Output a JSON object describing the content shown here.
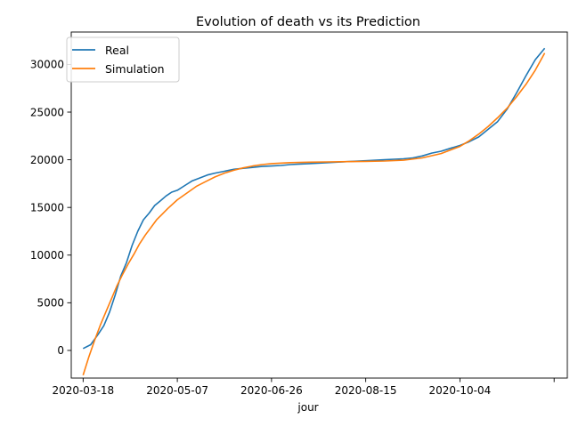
{
  "chart_data": {
    "type": "line",
    "title": "Evolution of death vs its Prediction",
    "xlabel": "jour",
    "ylabel": "",
    "x_tick_labels": [
      "2020-03-18",
      "2020-05-07",
      "2020-06-26",
      "2020-08-15",
      "2020-10-04",
      ""
    ],
    "x_tick_days": [
      0,
      50,
      100,
      150,
      200,
      250
    ],
    "x_range_days": [
      -6.3,
      257
    ],
    "x_start_date": "2020-03-18",
    "y_ticks": [
      0,
      5000,
      10000,
      15000,
      20000,
      25000,
      30000
    ],
    "ylim": [
      -2900,
      33400
    ],
    "legend_position": "upper left",
    "grid": false,
    "series": [
      {
        "name": "Real",
        "color": "#1f77b4",
        "x_days": [
          0,
          4,
          8,
          11,
          14,
          17,
          20,
          23,
          26,
          29,
          32,
          35,
          38,
          41,
          44,
          47,
          50,
          54,
          58,
          62,
          66,
          70,
          75,
          80,
          85,
          90,
          95,
          100,
          105,
          110,
          115,
          120,
          130,
          140,
          150,
          160,
          170,
          175,
          180,
          185,
          190,
          195,
          200,
          205,
          210,
          215,
          220,
          225,
          230,
          235,
          240,
          245
        ],
        "values": [
          200,
          600,
          1700,
          2600,
          4000,
          5800,
          7800,
          9200,
          11000,
          12500,
          13700,
          14400,
          15200,
          15700,
          16200,
          16600,
          16800,
          17300,
          17800,
          18100,
          18400,
          18600,
          18800,
          19000,
          19100,
          19200,
          19300,
          19350,
          19400,
          19500,
          19550,
          19600,
          19700,
          19800,
          19900,
          20000,
          20100,
          20200,
          20400,
          20700,
          20900,
          21200,
          21500,
          21900,
          22400,
          23200,
          24000,
          25300,
          27000,
          28800,
          30500,
          31700
        ]
      },
      {
        "name": "Simulation",
        "color": "#ff7f0e",
        "x_days": [
          0,
          3,
          6,
          9,
          12,
          15,
          18,
          21,
          24,
          27,
          30,
          33,
          36,
          39,
          42,
          45,
          50,
          55,
          60,
          65,
          70,
          75,
          80,
          85,
          90,
          95,
          100,
          110,
          120,
          130,
          140,
          150,
          160,
          170,
          180,
          190,
          200,
          205,
          210,
          215,
          220,
          225,
          230,
          235,
          240,
          245
        ],
        "values": [
          -2600,
          -700,
          1000,
          2600,
          4000,
          5400,
          6800,
          8000,
          9100,
          10100,
          11200,
          12100,
          12900,
          13700,
          14300,
          14900,
          15800,
          16500,
          17200,
          17700,
          18200,
          18600,
          18900,
          19150,
          19350,
          19500,
          19600,
          19700,
          19750,
          19780,
          19800,
          19830,
          19870,
          19950,
          20200,
          20650,
          21400,
          22000,
          22700,
          23500,
          24400,
          25400,
          26600,
          27900,
          29400,
          31200
        ]
      }
    ]
  }
}
